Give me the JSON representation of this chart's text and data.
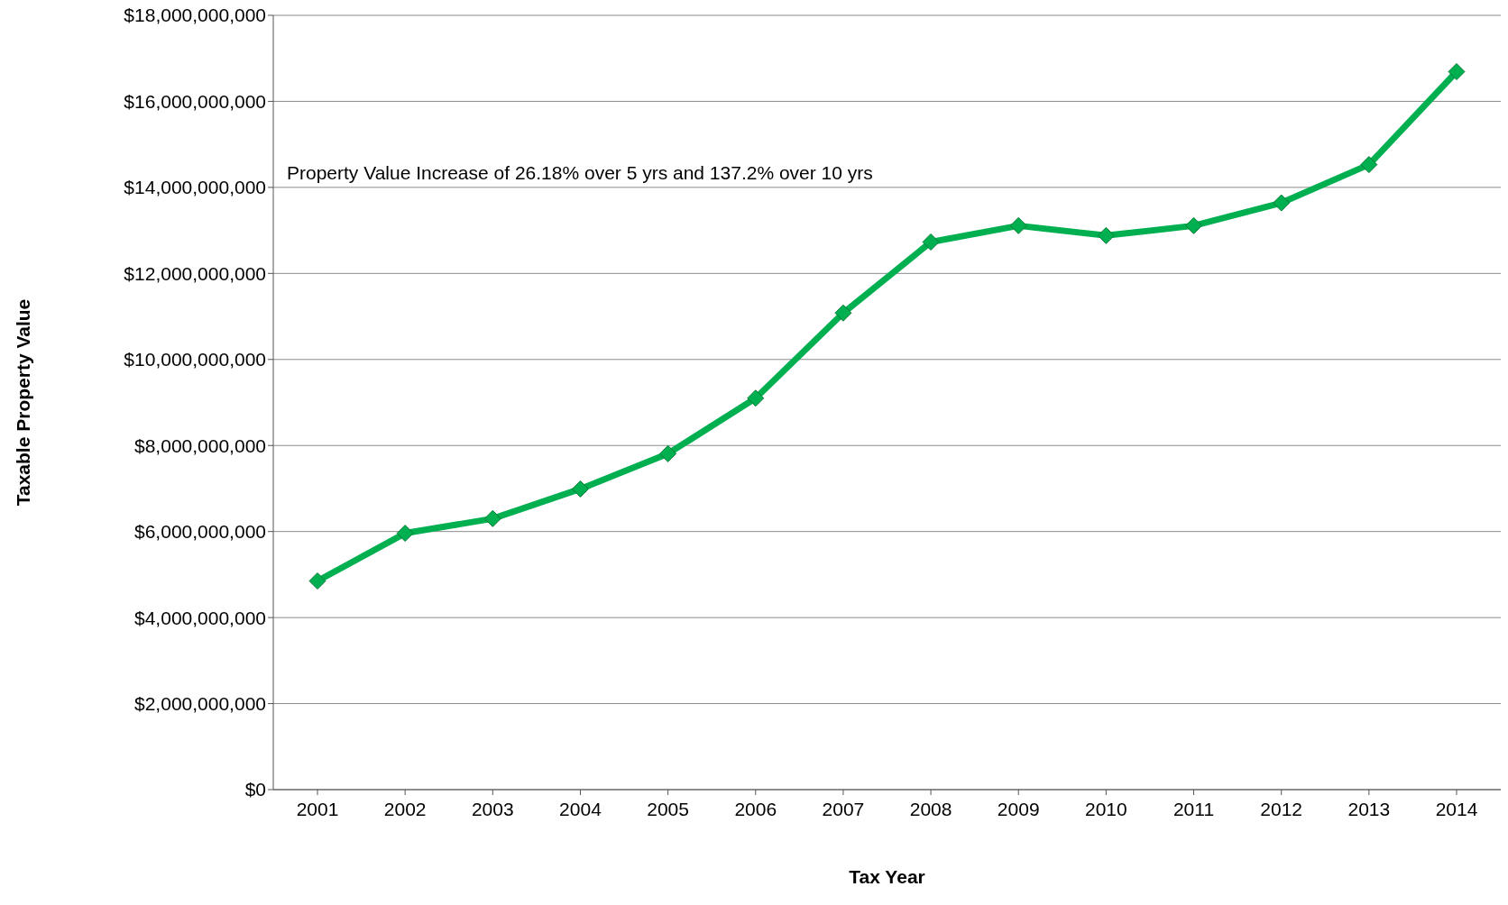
{
  "chart_data": {
    "type": "line",
    "xlabel": "Tax Year",
    "ylabel": "Taxable Property Value",
    "annotations": [
      "Property Value Increase of 26.18% over 5 yrs and 137.2% over 10 yrs"
    ],
    "categories": [
      "2001",
      "2002",
      "2003",
      "2004",
      "2005",
      "2006",
      "2007",
      "2008",
      "2009",
      "2010",
      "2011",
      "2012",
      "2013",
      "2014"
    ],
    "series": [
      {
        "color": "#00b050",
        "values": [
          4850000000,
          5960000000,
          6300000000,
          6990000000,
          7810000000,
          9100000000,
          11080000000,
          12730000000,
          13110000000,
          12880000000,
          13110000000,
          13640000000,
          14530000000,
          16690000000
        ]
      }
    ],
    "ylim": [
      0,
      18000000000
    ],
    "yticks": [
      {
        "value": 0,
        "label": "$0"
      },
      {
        "value": 2000000000,
        "label": "$2,000,000,000"
      },
      {
        "value": 4000000000,
        "label": "$4,000,000,000"
      },
      {
        "value": 6000000000,
        "label": "$6,000,000,000"
      },
      {
        "value": 8000000000,
        "label": "$8,000,000,000"
      },
      {
        "value": 10000000000,
        "label": "$10,000,000,000"
      },
      {
        "value": 12000000000,
        "label": "$12,000,000,000"
      },
      {
        "value": 14000000000,
        "label": "$14,000,000,000"
      },
      {
        "value": 16000000000,
        "label": "$16,000,000,000"
      },
      {
        "value": 18000000000,
        "label": "$18,000,000,000"
      }
    ],
    "grid": "y",
    "marker": "diamond",
    "line_style": "solid"
  }
}
